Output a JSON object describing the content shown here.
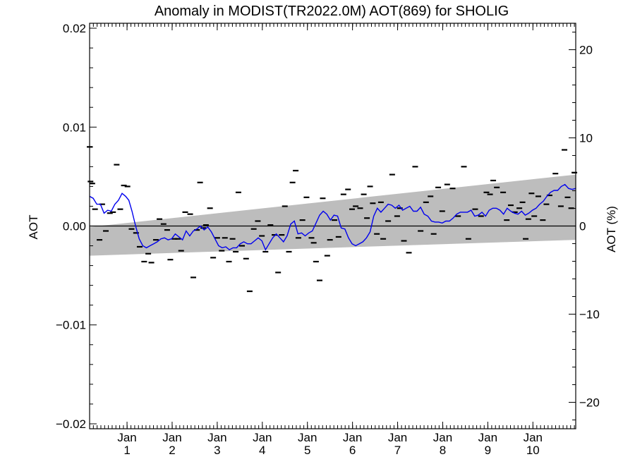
{
  "chart_data": {
    "type": "scatter",
    "title": "Anomaly in MODIST(TR2022.0M) AOT(869) for SHOLIG",
    "ylabel": "AOT",
    "ylabel_right": "AOT (%)",
    "xlabel": "",
    "ylim": [
      -0.0205,
      0.0205
    ],
    "ylim_right": [
      -23,
      23
    ],
    "xlim": [
      0,
      10.78
    ],
    "grid": false,
    "y_ticks": [
      {
        "value": -0.02,
        "label": "−0.02"
      },
      {
        "value": -0.01,
        "label": "−0.01"
      },
      {
        "value": 0.0,
        "label": "0.00"
      },
      {
        "value": 0.01,
        "label": "0.01"
      },
      {
        "value": 0.02,
        "label": "0.02"
      }
    ],
    "y_right_ticks": [
      {
        "value": -20,
        "label": "−20"
      },
      {
        "value": -10,
        "label": "−10"
      },
      {
        "value": 0,
        "label": "0"
      },
      {
        "value": 10,
        "label": "10"
      },
      {
        "value": 20,
        "label": "20"
      }
    ],
    "x_ticks": [
      {
        "value": 0.83,
        "month": "Jan",
        "year": "1"
      },
      {
        "value": 1.83,
        "month": "Jan",
        "year": "2"
      },
      {
        "value": 2.83,
        "month": "Jan",
        "year": "3"
      },
      {
        "value": 3.83,
        "month": "Jan",
        "year": "4"
      },
      {
        "value": 4.83,
        "month": "Jan",
        "year": "5"
      },
      {
        "value": 5.83,
        "month": "Jan",
        "year": "6"
      },
      {
        "value": 6.83,
        "month": "Jan",
        "year": "7"
      },
      {
        "value": 7.83,
        "month": "Jan",
        "year": "8"
      },
      {
        "value": 8.83,
        "month": "Jan",
        "year": "9"
      },
      {
        "value": 9.83,
        "month": "Jan",
        "year": "10"
      }
    ],
    "trend_band": {
      "x": [
        0,
        10.78
      ],
      "upper": [
        -0.0001,
        0.0052
      ],
      "lower": [
        -0.003,
        -0.0014
      ]
    },
    "zero_line": 0,
    "points": [
      [
        0.0,
        0.008
      ],
      [
        0.02,
        0.0045
      ],
      [
        0.06,
        0.0043
      ],
      [
        0.12,
        0.0017
      ],
      [
        0.22,
        -0.0014
      ],
      [
        0.28,
        0.0022
      ],
      [
        0.36,
        -0.0005
      ],
      [
        0.45,
        0.0013
      ],
      [
        0.52,
        0.0014
      ],
      [
        0.6,
        0.0062
      ],
      [
        0.68,
        0.0017
      ],
      [
        0.76,
        0.0041
      ],
      [
        0.84,
        0.004
      ],
      [
        0.93,
        -0.0003
      ],
      [
        1.03,
        -0.0007
      ],
      [
        1.11,
        -0.0021
      ],
      [
        1.21,
        -0.0036
      ],
      [
        1.3,
        -0.0028
      ],
      [
        1.37,
        -0.0037
      ],
      [
        1.47,
        -0.0014
      ],
      [
        1.55,
        0.0007
      ],
      [
        1.64,
        0.0002
      ],
      [
        1.72,
        -0.0004
      ],
      [
        1.79,
        -0.0034
      ],
      [
        1.88,
        -0.0013
      ],
      [
        1.96,
        -0.0013
      ],
      [
        2.03,
        -0.0025
      ],
      [
        2.12,
        0.0014
      ],
      [
        2.23,
        0.0012
      ],
      [
        2.3,
        -0.0052
      ],
      [
        2.38,
        -0.0004
      ],
      [
        2.45,
        0.0044
      ],
      [
        2.52,
        -0.0002
      ],
      [
        2.58,
        0.0001
      ],
      [
        2.67,
        0.0018
      ],
      [
        2.74,
        -0.0032
      ],
      [
        2.83,
        -0.0012
      ],
      [
        2.93,
        -0.0025
      ],
      [
        3.0,
        -0.0012
      ],
      [
        3.09,
        -0.0036
      ],
      [
        3.17,
        -0.0013
      ],
      [
        3.24,
        -0.0026
      ],
      [
        3.3,
        0.0034
      ],
      [
        3.38,
        -0.002
      ],
      [
        3.47,
        -0.0033
      ],
      [
        3.55,
        -0.0066
      ],
      [
        3.64,
        -0.0003
      ],
      [
        3.73,
        0.0005
      ],
      [
        3.82,
        -0.001
      ],
      [
        3.9,
        -0.0026
      ],
      [
        4.01,
        0.0001
      ],
      [
        4.1,
        -0.0009
      ],
      [
        4.18,
        -0.0047
      ],
      [
        4.26,
        -0.0009
      ],
      [
        4.33,
        0.002
      ],
      [
        4.42,
        -0.0026
      ],
      [
        4.5,
        0.0044
      ],
      [
        4.57,
        0.0056
      ],
      [
        4.63,
        -0.0012
      ],
      [
        4.72,
        0.0006
      ],
      [
        4.81,
        0.0029
      ],
      [
        4.92,
        -0.0012
      ],
      [
        4.97,
        -0.0017
      ],
      [
        5.02,
        -0.0036
      ],
      [
        5.1,
        -0.0055
      ],
      [
        5.17,
        0.0028
      ],
      [
        5.27,
        -0.003
      ],
      [
        5.33,
        -0.0014
      ],
      [
        5.43,
        0.0006
      ],
      [
        5.52,
        -0.0011
      ],
      [
        5.63,
        0.0032
      ],
      [
        5.73,
        0.0037
      ],
      [
        5.82,
        0.0017
      ],
      [
        5.9,
        0.002
      ],
      [
        6.0,
        0.0018
      ],
      [
        6.08,
        0.0032
      ],
      [
        6.15,
        0.0008
      ],
      [
        6.22,
        0.004
      ],
      [
        6.28,
        0.0023
      ],
      [
        6.37,
        -0.0008
      ],
      [
        6.46,
        0.0024
      ],
      [
        6.51,
        -0.0013
      ],
      [
        6.62,
        0.0005
      ],
      [
        6.71,
        0.0052
      ],
      [
        6.82,
        0.001
      ],
      [
        6.88,
        0.0018
      ],
      [
        6.97,
        -0.0015
      ],
      [
        7.08,
        -0.0027
      ],
      [
        7.22,
        0.006
      ],
      [
        7.34,
        -0.0005
      ],
      [
        7.46,
        0.0024
      ],
      [
        7.56,
        0.003
      ],
      [
        7.63,
        -0.0008
      ],
      [
        7.73,
        0.0039
      ],
      [
        7.82,
        0.0015
      ],
      [
        7.93,
        0.0042
      ],
      [
        8.05,
        0.0038
      ],
      [
        8.17,
        0.001
      ],
      [
        8.3,
        0.006
      ],
      [
        8.4,
        -0.0013
      ],
      [
        8.55,
        0.0017
      ],
      [
        8.68,
        0.001
      ],
      [
        8.8,
        0.0034
      ],
      [
        8.88,
        0.0032
      ],
      [
        8.95,
        0.0046
      ],
      [
        9.03,
        0.0039
      ],
      [
        9.17,
        0.0034
      ],
      [
        9.25,
        0.0006
      ],
      [
        9.34,
        0.0021
      ],
      [
        9.43,
        0.0014
      ],
      [
        9.53,
        0.0018
      ],
      [
        9.6,
        0.0024
      ],
      [
        9.67,
        -0.0013
      ],
      [
        9.73,
        0.0007
      ],
      [
        9.8,
        0.0033
      ],
      [
        9.86,
        0.001
      ],
      [
        9.95,
        0.003
      ],
      [
        10.05,
        0.0006
      ],
      [
        10.13,
        0.0022
      ],
      [
        10.2,
        0.0031
      ],
      [
        10.33,
        0.0053
      ],
      [
        10.45,
        0.002
      ],
      [
        10.53,
        0.0077
      ],
      [
        10.6,
        0.0029
      ],
      [
        10.68,
        0.0018
      ],
      [
        10.75,
        0.0054
      ]
    ],
    "smoothed_line": [
      [
        0.0,
        0.003
      ],
      [
        0.08,
        0.0028
      ],
      [
        0.16,
        0.0022
      ],
      [
        0.24,
        0.0022
      ],
      [
        0.32,
        0.0013
      ],
      [
        0.4,
        0.0016
      ],
      [
        0.48,
        0.0015
      ],
      [
        0.56,
        0.0022
      ],
      [
        0.64,
        0.0026
      ],
      [
        0.72,
        0.0033
      ],
      [
        0.8,
        0.003
      ],
      [
        0.87,
        0.0026
      ],
      [
        0.94,
        0.0015
      ],
      [
        1.02,
        0.0
      ],
      [
        1.1,
        -0.0013
      ],
      [
        1.18,
        -0.002
      ],
      [
        1.26,
        -0.0022
      ],
      [
        1.34,
        -0.002
      ],
      [
        1.42,
        -0.0018
      ],
      [
        1.5,
        -0.0016
      ],
      [
        1.58,
        -0.0013
      ],
      [
        1.66,
        -0.0012
      ],
      [
        1.74,
        -0.0014
      ],
      [
        1.82,
        -0.0013
      ],
      [
        1.9,
        -0.0008
      ],
      [
        1.98,
        -0.0011
      ],
      [
        2.06,
        -0.0014
      ],
      [
        2.14,
        -0.0005
      ],
      [
        2.22,
        -0.001
      ],
      [
        2.3,
        -0.0005
      ],
      [
        2.38,
        -0.0003
      ],
      [
        2.46,
        0.0
      ],
      [
        2.54,
        -0.0004
      ],
      [
        2.62,
        -0.0001
      ],
      [
        2.7,
        -0.0006
      ],
      [
        2.78,
        -0.0013
      ],
      [
        2.86,
        -0.002
      ],
      [
        2.94,
        -0.0022
      ],
      [
        3.02,
        -0.0021
      ],
      [
        3.1,
        -0.0024
      ],
      [
        3.18,
        -0.0022
      ],
      [
        3.26,
        -0.0022
      ],
      [
        3.34,
        -0.0018
      ],
      [
        3.42,
        -0.0016
      ],
      [
        3.5,
        -0.0018
      ],
      [
        3.58,
        -0.0018
      ],
      [
        3.66,
        -0.0015
      ],
      [
        3.74,
        -0.0012
      ],
      [
        3.82,
        -0.0015
      ],
      [
        3.9,
        -0.0024
      ],
      [
        3.98,
        -0.0018
      ],
      [
        4.06,
        -0.0012
      ],
      [
        4.14,
        -0.0008
      ],
      [
        4.22,
        -0.0012
      ],
      [
        4.3,
        -0.0016
      ],
      [
        4.38,
        -0.001
      ],
      [
        4.46,
        0.0002
      ],
      [
        4.54,
        0.0005
      ],
      [
        4.62,
        -0.0008
      ],
      [
        4.7,
        -0.0007
      ],
      [
        4.78,
        -0.001
      ],
      [
        4.86,
        -0.0007
      ],
      [
        4.94,
        -0.0005
      ],
      [
        5.02,
        0.0003
      ],
      [
        5.1,
        0.0011
      ],
      [
        5.18,
        0.0015
      ],
      [
        5.26,
        0.0012
      ],
      [
        5.34,
        0.0006
      ],
      [
        5.42,
        0.0011
      ],
      [
        5.5,
        0.001
      ],
      [
        5.58,
        -0.0002
      ],
      [
        5.66,
        -0.0003
      ],
      [
        5.74,
        -0.0012
      ],
      [
        5.82,
        -0.0018
      ],
      [
        5.9,
        -0.002
      ],
      [
        5.98,
        -0.0018
      ],
      [
        6.06,
        -0.0016
      ],
      [
        6.14,
        -0.0012
      ],
      [
        6.22,
        -0.0006
      ],
      [
        6.3,
        0.001
      ],
      [
        6.38,
        0.0018
      ],
      [
        6.46,
        0.0014
      ],
      [
        6.54,
        0.0018
      ],
      [
        6.62,
        0.0022
      ],
      [
        6.7,
        0.0021
      ],
      [
        6.78,
        0.0018
      ],
      [
        6.86,
        0.0021
      ],
      [
        6.94,
        0.0016
      ],
      [
        7.02,
        0.0018
      ],
      [
        7.1,
        0.002
      ],
      [
        7.18,
        0.0015
      ],
      [
        7.26,
        0.0015
      ],
      [
        7.34,
        0.0019
      ],
      [
        7.42,
        0.0012
      ],
      [
        7.5,
        0.001
      ],
      [
        7.58,
        0.0005
      ],
      [
        7.66,
        0.0004
      ],
      [
        7.74,
        0.0004
      ],
      [
        7.82,
        0.0003
      ],
      [
        7.9,
        0.0005
      ],
      [
        7.98,
        0.0005
      ],
      [
        8.06,
        0.0008
      ],
      [
        8.14,
        0.0012
      ],
      [
        8.22,
        0.0014
      ],
      [
        8.3,
        0.0014
      ],
      [
        8.38,
        0.0014
      ],
      [
        8.46,
        0.0016
      ],
      [
        8.54,
        0.001
      ],
      [
        8.62,
        0.0011
      ],
      [
        8.7,
        0.0014
      ],
      [
        8.78,
        0.001
      ],
      [
        8.86,
        0.0016
      ],
      [
        8.94,
        0.0018
      ],
      [
        9.02,
        0.0018
      ],
      [
        9.1,
        0.0016
      ],
      [
        9.18,
        0.0012
      ],
      [
        9.26,
        0.0018
      ],
      [
        9.34,
        0.0015
      ],
      [
        9.42,
        0.0013
      ],
      [
        9.5,
        0.0012
      ],
      [
        9.58,
        0.0015
      ],
      [
        9.66,
        0.0011
      ],
      [
        9.74,
        0.0013
      ],
      [
        9.82,
        0.0016
      ],
      [
        9.9,
        0.0018
      ],
      [
        9.98,
        0.0022
      ],
      [
        10.06,
        0.0025
      ],
      [
        10.14,
        0.003
      ],
      [
        10.22,
        0.0034
      ],
      [
        10.3,
        0.0036
      ],
      [
        10.38,
        0.0036
      ],
      [
        10.46,
        0.004
      ],
      [
        10.54,
        0.0042
      ],
      [
        10.62,
        0.0038
      ],
      [
        10.7,
        0.0037
      ],
      [
        10.78,
        0.0038
      ]
    ],
    "colors": {
      "band": "#bdbdbd",
      "line": "#0000ee",
      "points": "#000000",
      "axes": "#000000"
    }
  }
}
